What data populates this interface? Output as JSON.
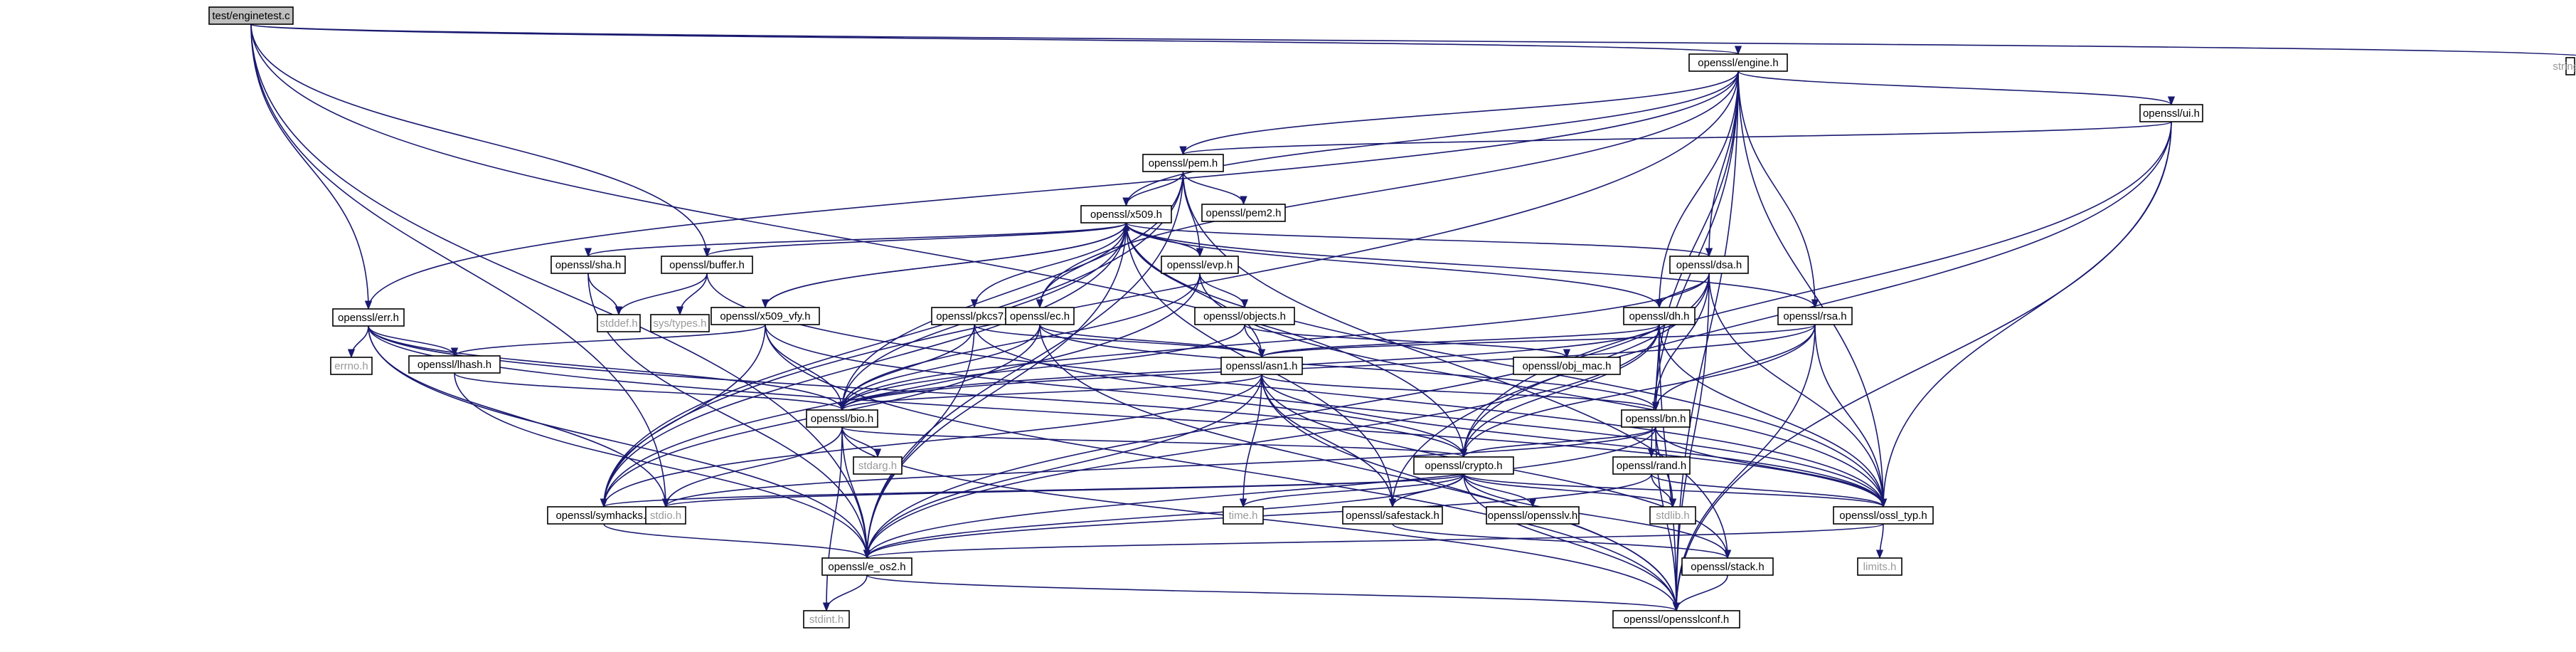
{
  "diagram": {
    "title": "",
    "root": "test/enginetest.c",
    "colors": {
      "root_fill": "#bfbfbf",
      "header_fill": "#ffffff",
      "system_header_text": "#999999",
      "edge": "#191970"
    },
    "nodes": [
      {
        "id": "root",
        "label": "test/enginetest.c",
        "kind": "root"
      },
      {
        "id": "engine",
        "label": "openssl/engine.h",
        "kind": "header"
      },
      {
        "id": "string",
        "label": "string.h",
        "kind": "system"
      },
      {
        "id": "ui",
        "label": "openssl/ui.h",
        "kind": "header"
      },
      {
        "id": "pem",
        "label": "openssl/pem.h",
        "kind": "header"
      },
      {
        "id": "pem2",
        "label": "openssl/pem2.h",
        "kind": "header"
      },
      {
        "id": "x509",
        "label": "openssl/x509.h",
        "kind": "header"
      },
      {
        "id": "sha",
        "label": "openssl/sha.h",
        "kind": "header"
      },
      {
        "id": "buffer",
        "label": "openssl/buffer.h",
        "kind": "header"
      },
      {
        "id": "evp",
        "label": "openssl/evp.h",
        "kind": "header"
      },
      {
        "id": "dsa",
        "label": "openssl/dsa.h",
        "kind": "header"
      },
      {
        "id": "err",
        "label": "openssl/err.h",
        "kind": "header"
      },
      {
        "id": "x509vfy",
        "label": "openssl/x509_vfy.h",
        "kind": "header"
      },
      {
        "id": "pkcs7",
        "label": "openssl/pkcs7.h",
        "kind": "header"
      },
      {
        "id": "ec",
        "label": "openssl/ec.h",
        "kind": "header"
      },
      {
        "id": "objects",
        "label": "openssl/objects.h",
        "kind": "header"
      },
      {
        "id": "dh",
        "label": "openssl/dh.h",
        "kind": "header"
      },
      {
        "id": "rsa",
        "label": "openssl/rsa.h",
        "kind": "header"
      },
      {
        "id": "stddef",
        "label": "stddef.h",
        "kind": "system"
      },
      {
        "id": "systypes",
        "label": "sys/types.h",
        "kind": "system"
      },
      {
        "id": "errno",
        "label": "errno.h",
        "kind": "system"
      },
      {
        "id": "lhash",
        "label": "openssl/lhash.h",
        "kind": "header"
      },
      {
        "id": "asn1",
        "label": "openssl/asn1.h",
        "kind": "header"
      },
      {
        "id": "objmac",
        "label": "openssl/obj_mac.h",
        "kind": "header"
      },
      {
        "id": "bio",
        "label": "openssl/bio.h",
        "kind": "header"
      },
      {
        "id": "bn",
        "label": "openssl/bn.h",
        "kind": "header"
      },
      {
        "id": "stdarg",
        "label": "stdarg.h",
        "kind": "system"
      },
      {
        "id": "crypto",
        "label": "openssl/crypto.h",
        "kind": "header"
      },
      {
        "id": "rand",
        "label": "openssl/rand.h",
        "kind": "header"
      },
      {
        "id": "symhacks",
        "label": "openssl/symhacks.h",
        "kind": "header"
      },
      {
        "id": "stdio",
        "label": "stdio.h",
        "kind": "system"
      },
      {
        "id": "time",
        "label": "time.h",
        "kind": "system"
      },
      {
        "id": "safestack",
        "label": "openssl/safestack.h",
        "kind": "header"
      },
      {
        "id": "opensslv",
        "label": "openssl/opensslv.h",
        "kind": "header"
      },
      {
        "id": "stdlib",
        "label": "stdlib.h",
        "kind": "system"
      },
      {
        "id": "ossltyp",
        "label": "openssl/ossl_typ.h",
        "kind": "header"
      },
      {
        "id": "eos2",
        "label": "openssl/e_os2.h",
        "kind": "header"
      },
      {
        "id": "stack",
        "label": "openssl/stack.h",
        "kind": "header"
      },
      {
        "id": "limits",
        "label": "limits.h",
        "kind": "system"
      },
      {
        "id": "stdint",
        "label": "stdint.h",
        "kind": "system"
      },
      {
        "id": "opensslconf",
        "label": "openssl/opensslconf.h",
        "kind": "header"
      }
    ],
    "edges": [
      [
        "root",
        "engine"
      ],
      [
        "root",
        "string"
      ],
      [
        "root",
        "buffer"
      ],
      [
        "root",
        "err"
      ],
      [
        "root",
        "stdio"
      ],
      [
        "root",
        "eos2"
      ],
      [
        "root",
        "crypto"
      ],
      [
        "engine",
        "ui"
      ],
      [
        "engine",
        "pem"
      ],
      [
        "engine",
        "x509"
      ],
      [
        "engine",
        "dsa"
      ],
      [
        "engine",
        "rsa"
      ],
      [
        "engine",
        "dh"
      ],
      [
        "engine",
        "ec"
      ],
      [
        "engine",
        "err"
      ],
      [
        "engine",
        "bn"
      ],
      [
        "engine",
        "rand"
      ],
      [
        "engine",
        "symhacks"
      ],
      [
        "engine",
        "ossltyp"
      ],
      [
        "engine",
        "opensslconf"
      ],
      [
        "ui",
        "pem"
      ],
      [
        "ui",
        "crypto"
      ],
      [
        "ui",
        "ossltyp"
      ],
      [
        "ui",
        "safestack"
      ],
      [
        "ui",
        "opensslconf"
      ],
      [
        "pem",
        "x509"
      ],
      [
        "pem",
        "pem2"
      ],
      [
        "pem",
        "evp"
      ],
      [
        "pem",
        "bio"
      ],
      [
        "pem",
        "symhacks"
      ],
      [
        "pem",
        "eos2"
      ],
      [
        "pem",
        "stack"
      ],
      [
        "x509",
        "sha"
      ],
      [
        "x509",
        "buffer"
      ],
      [
        "x509",
        "evp"
      ],
      [
        "x509",
        "x509vfy"
      ],
      [
        "x509",
        "pkcs7"
      ],
      [
        "x509",
        "ec"
      ],
      [
        "x509",
        "dsa"
      ],
      [
        "x509",
        "rsa"
      ],
      [
        "x509",
        "dh"
      ],
      [
        "x509",
        "asn1"
      ],
      [
        "x509",
        "bio"
      ],
      [
        "x509",
        "safestack"
      ],
      [
        "x509",
        "symhacks"
      ],
      [
        "x509",
        "ossltyp"
      ],
      [
        "x509",
        "eos2"
      ],
      [
        "sha",
        "stddef"
      ],
      [
        "sha",
        "eos2"
      ],
      [
        "buffer",
        "stddef"
      ],
      [
        "buffer",
        "systypes"
      ],
      [
        "buffer",
        "ossltyp"
      ],
      [
        "evp",
        "objects"
      ],
      [
        "evp",
        "bio"
      ],
      [
        "evp",
        "symhacks"
      ],
      [
        "evp",
        "ossltyp"
      ],
      [
        "dsa",
        "dh"
      ],
      [
        "dsa",
        "bn"
      ],
      [
        "dsa",
        "crypto"
      ],
      [
        "dsa",
        "bio"
      ],
      [
        "dsa",
        "ossltyp"
      ],
      [
        "dsa",
        "eos2"
      ],
      [
        "dsa",
        "opensslconf"
      ],
      [
        "err",
        "errno"
      ],
      [
        "err",
        "lhash"
      ],
      [
        "err",
        "bio"
      ],
      [
        "err",
        "stdio"
      ],
      [
        "err",
        "crypto"
      ],
      [
        "err",
        "ossltyp"
      ],
      [
        "err",
        "eos2"
      ],
      [
        "x509vfy",
        "x509"
      ],
      [
        "x509vfy",
        "lhash"
      ],
      [
        "x509vfy",
        "bio"
      ],
      [
        "x509vfy",
        "crypto"
      ],
      [
        "x509vfy",
        "symhacks"
      ],
      [
        "x509vfy",
        "opensslconf"
      ],
      [
        "pkcs7",
        "asn1"
      ],
      [
        "pkcs7",
        "bio"
      ],
      [
        "pkcs7",
        "ossltyp"
      ],
      [
        "pkcs7",
        "eos2"
      ],
      [
        "ec",
        "asn1"
      ],
      [
        "ec",
        "bn"
      ],
      [
        "ec",
        "bio"
      ],
      [
        "ec",
        "symhacks"
      ],
      [
        "ec",
        "opensslconf"
      ],
      [
        "objects",
        "objmac"
      ],
      [
        "objects",
        "asn1"
      ],
      [
        "objects",
        "bio"
      ],
      [
        "dh",
        "asn1"
      ],
      [
        "dh",
        "bn"
      ],
      [
        "dh",
        "bio"
      ],
      [
        "dh",
        "crypto"
      ],
      [
        "dh",
        "ossltyp"
      ],
      [
        "dh",
        "eos2"
      ],
      [
        "dh",
        "opensslconf"
      ],
      [
        "rsa",
        "asn1"
      ],
      [
        "rsa",
        "bn"
      ],
      [
        "rsa",
        "crypto"
      ],
      [
        "rsa",
        "bio"
      ],
      [
        "rsa",
        "ossltyp"
      ],
      [
        "rsa",
        "opensslconf"
      ],
      [
        "lhash",
        "bio"
      ],
      [
        "lhash",
        "eos2"
      ],
      [
        "asn1",
        "bio"
      ],
      [
        "asn1",
        "bn"
      ],
      [
        "asn1",
        "time"
      ],
      [
        "asn1",
        "stack"
      ],
      [
        "asn1",
        "safestack"
      ],
      [
        "asn1",
        "ossltyp"
      ],
      [
        "asn1",
        "eos2"
      ],
      [
        "asn1",
        "opensslconf"
      ],
      [
        "asn1",
        "symhacks"
      ],
      [
        "bio",
        "stdarg"
      ],
      [
        "bio",
        "stdio"
      ],
      [
        "bio",
        "crypto"
      ],
      [
        "bio",
        "eos2"
      ],
      [
        "bio",
        "stdint"
      ],
      [
        "bio",
        "opensslconf"
      ],
      [
        "bn",
        "crypto"
      ],
      [
        "bn",
        "ossltyp"
      ],
      [
        "bn",
        "stdio"
      ],
      [
        "bn",
        "eos2"
      ],
      [
        "bn",
        "opensslconf"
      ],
      [
        "bn",
        "stdlib"
      ],
      [
        "crypto",
        "symhacks"
      ],
      [
        "crypto",
        "stdio"
      ],
      [
        "crypto",
        "time"
      ],
      [
        "crypto",
        "safestack"
      ],
      [
        "crypto",
        "opensslv"
      ],
      [
        "crypto",
        "stdlib"
      ],
      [
        "crypto",
        "ossltyp"
      ],
      [
        "crypto",
        "eos2"
      ],
      [
        "crypto",
        "stack"
      ],
      [
        "crypto",
        "opensslconf"
      ],
      [
        "rand",
        "ossltyp"
      ],
      [
        "rand",
        "stdlib"
      ],
      [
        "rand",
        "eos2"
      ],
      [
        "symhacks",
        "eos2"
      ],
      [
        "safestack",
        "stack"
      ],
      [
        "ossltyp",
        "eos2"
      ],
      [
        "ossltyp",
        "limits"
      ],
      [
        "eos2",
        "opensslconf"
      ],
      [
        "eos2",
        "stdint"
      ],
      [
        "stack",
        "opensslconf"
      ]
    ]
  }
}
